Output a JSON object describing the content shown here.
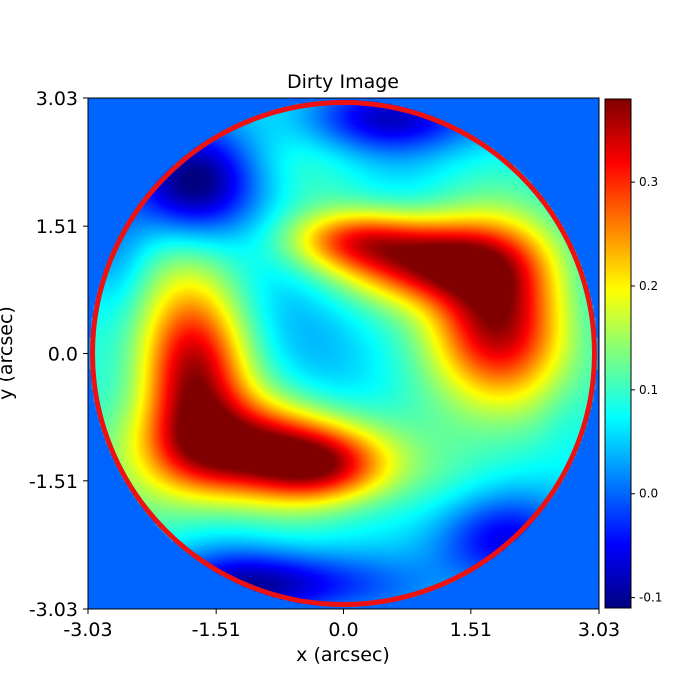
{
  "chart_data": {
    "type": "heatmap",
    "title": "Dirty Image",
    "xlabel": "x (arcsec)",
    "ylabel": "y (arcsec)",
    "xlim": [
      -3.03,
      3.03
    ],
    "ylim": [
      -3.03,
      3.03
    ],
    "xticks": [
      "-3.03",
      "-1.51",
      "0.0",
      "1.51",
      "3.03"
    ],
    "yticks": [
      "-3.03",
      "-1.51",
      "0.0",
      "1.51",
      "3.03"
    ],
    "colormap": "jet",
    "colorbar": {
      "range": [
        -0.11,
        0.38
      ],
      "ticks": [
        "-0.1",
        "0.0",
        "0.1",
        "0.2",
        "0.3"
      ],
      "tick_values": [
        -0.1,
        0.0,
        0.1,
        0.2,
        0.3
      ]
    },
    "mask_radius_arcsec": 3.0,
    "mask_edge_color": "#ee1111",
    "background_value": 0.0,
    "features": [
      {
        "x": -1.8,
        "y": -0.25,
        "value": 0.36
      },
      {
        "x": -1.0,
        "y": -1.15,
        "value": 0.34
      },
      {
        "x": 1.8,
        "y": 0.3,
        "value": 0.37
      },
      {
        "x": 1.05,
        "y": 1.1,
        "value": 0.35
      },
      {
        "x": 0.2,
        "y": 0.1,
        "value": 0.04
      },
      {
        "x": -0.6,
        "y": -2.7,
        "value": -0.09
      },
      {
        "x": 0.6,
        "y": 2.8,
        "value": -0.07
      },
      {
        "x": -1.8,
        "y": 2.0,
        "value": -0.1
      }
    ]
  }
}
